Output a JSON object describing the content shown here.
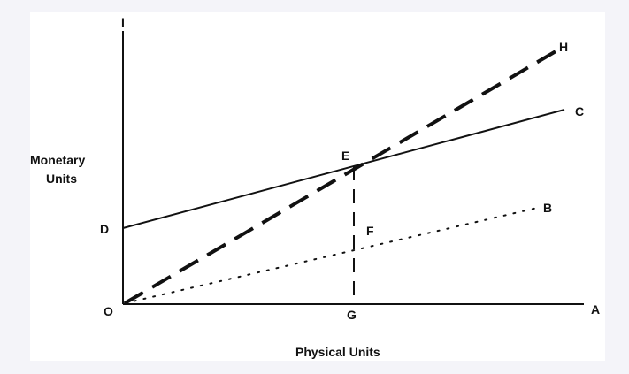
{
  "labels": {
    "top_axis_mark": "I",
    "origin": "O",
    "x_axis_end": "A",
    "point_b": "B",
    "point_c": "C",
    "point_d": "D",
    "point_e": "E",
    "point_f": "F",
    "point_g": "G",
    "point_h": "H"
  },
  "y_axis_title": {
    "line1": "Monetary",
    "line2": "Units"
  },
  "x_axis_title": "Physical Units",
  "colors": {
    "ink": "#111111",
    "panel": "#ffffff",
    "background": "#f4f4f9"
  },
  "lines": [
    {
      "name": "O-H",
      "style": "long-dashed"
    },
    {
      "name": "D-C",
      "style": "solid"
    },
    {
      "name": "O-B",
      "style": "dotted"
    },
    {
      "name": "E-G",
      "style": "dashed"
    }
  ]
}
